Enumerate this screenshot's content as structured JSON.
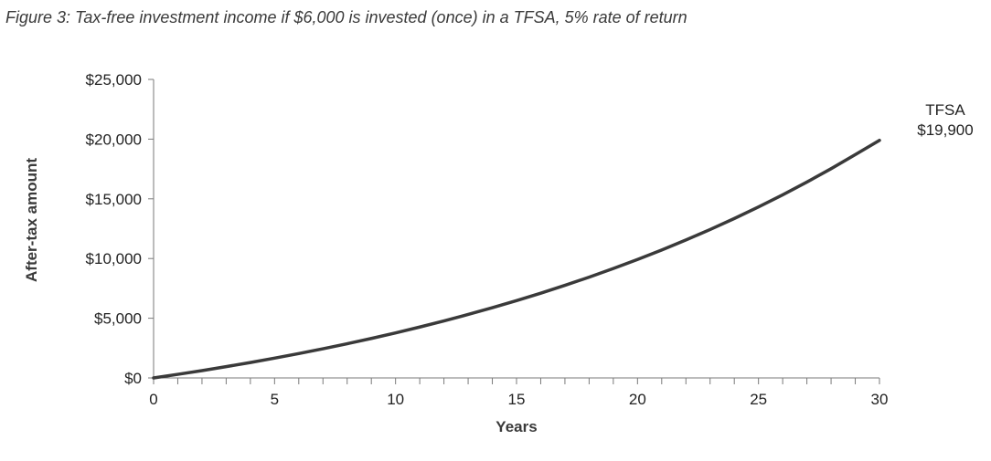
{
  "figure": {
    "title": "Figure 3: Tax-free investment income if $6,000 is invested (once) in a TFSA, 5% rate of return"
  },
  "chart_data": {
    "type": "line",
    "title": "",
    "xlabel": "Years",
    "ylabel": "After-tax amount",
    "xlim": [
      0,
      30
    ],
    "ylim": [
      0,
      25000
    ],
    "x_ticks": [
      0,
      5,
      10,
      15,
      20,
      25,
      30
    ],
    "x_tick_labels": [
      "0",
      "5",
      "10",
      "15",
      "20",
      "25",
      "30"
    ],
    "y_ticks": [
      0,
      5000,
      10000,
      15000,
      20000,
      25000
    ],
    "y_tick_labels": [
      "$0",
      "$5,000",
      "$10,000",
      "$15,000",
      "$20,000",
      "$25,000"
    ],
    "grid": false,
    "legend": "none",
    "series": [
      {
        "color": "#3a3a3a",
        "x": [
          0,
          1,
          2,
          3,
          4,
          5,
          6,
          7,
          8,
          9,
          10,
          11,
          12,
          13,
          14,
          15,
          16,
          17,
          18,
          19,
          20,
          21,
          22,
          23,
          24,
          25,
          26,
          27,
          28,
          29,
          30
        ],
        "values": [
          0,
          300,
          615,
          946,
          1293,
          1658,
          2041,
          2443,
          2865,
          3308,
          3773,
          4262,
          4775,
          5314,
          5880,
          6474,
          7097,
          7752,
          8440,
          9162,
          9920,
          10716,
          11552,
          12430,
          13351,
          14320,
          15336,
          16403,
          17523,
          18699,
          19900
        ]
      }
    ],
    "annotations": [
      {
        "line1": "TFSA",
        "line2": "$19,900"
      }
    ]
  }
}
